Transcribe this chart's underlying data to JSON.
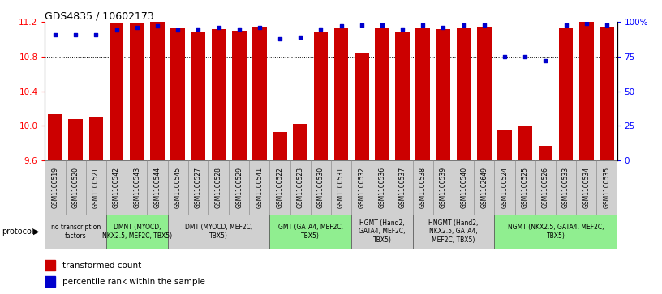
{
  "title": "GDS4835 / 10602173",
  "samples": [
    "GSM1100519",
    "GSM1100520",
    "GSM1100521",
    "GSM1100542",
    "GSM1100543",
    "GSM1100544",
    "GSM1100545",
    "GSM1100527",
    "GSM1100528",
    "GSM1100529",
    "GSM1100541",
    "GSM1100522",
    "GSM1100523",
    "GSM1100530",
    "GSM1100531",
    "GSM1100532",
    "GSM1100536",
    "GSM1100537",
    "GSM1100538",
    "GSM1100539",
    "GSM1100540",
    "GSM1102649",
    "GSM1100524",
    "GSM1100525",
    "GSM1100526",
    "GSM1100533",
    "GSM1100534",
    "GSM1100535"
  ],
  "bar_values": [
    10.13,
    10.08,
    10.1,
    11.19,
    11.18,
    11.2,
    11.13,
    11.09,
    11.12,
    11.1,
    11.15,
    9.93,
    10.02,
    11.08,
    11.13,
    10.84,
    11.13,
    11.09,
    11.13,
    11.12,
    11.13,
    11.15,
    9.95,
    10.0,
    9.77,
    11.13,
    11.2,
    11.15
  ],
  "percentile_values": [
    91,
    91,
    91,
    94,
    96,
    97,
    94,
    95,
    96,
    95,
    96,
    88,
    89,
    95,
    97,
    98,
    98,
    95,
    98,
    96,
    98,
    98,
    75,
    75,
    72,
    98,
    99,
    98
  ],
  "ylim_left": [
    9.6,
    11.2
  ],
  "ylim_right": [
    0,
    100
  ],
  "yticks_left": [
    9.6,
    10.0,
    10.4,
    10.8,
    11.2
  ],
  "yticks_right": [
    0,
    25,
    50,
    75,
    100
  ],
  "bar_color": "#cc0000",
  "dot_color": "#0000cc",
  "protocol_groups": [
    {
      "label": "no transcription\nfactors",
      "start": 0,
      "end": 3,
      "color": "#d0d0d0"
    },
    {
      "label": "DMNT (MYOCD,\nNKX2.5, MEF2C, TBX5)",
      "start": 3,
      "end": 6,
      "color": "#90ee90"
    },
    {
      "label": "DMT (MYOCD, MEF2C,\nTBX5)",
      "start": 6,
      "end": 11,
      "color": "#d0d0d0"
    },
    {
      "label": "GMT (GATA4, MEF2C,\nTBX5)",
      "start": 11,
      "end": 15,
      "color": "#90ee90"
    },
    {
      "label": "HGMT (Hand2,\nGATA4, MEF2C,\nTBX5)",
      "start": 15,
      "end": 18,
      "color": "#d0d0d0"
    },
    {
      "label": "HNGMT (Hand2,\nNKX2.5, GATA4,\nMEF2C, TBX5)",
      "start": 18,
      "end": 22,
      "color": "#d0d0d0"
    },
    {
      "label": "NGMT (NKX2.5, GATA4, MEF2C,\nTBX5)",
      "start": 22,
      "end": 28,
      "color": "#90ee90"
    }
  ],
  "sample_bg_color": "#d0d0d0",
  "title_fontsize": 9,
  "axis_fontsize": 7.5,
  "tick_fontsize": 6,
  "legend_fontsize": 7.5,
  "proto_label_fontsize": 5.5,
  "sample_label_fontsize": 5.5
}
